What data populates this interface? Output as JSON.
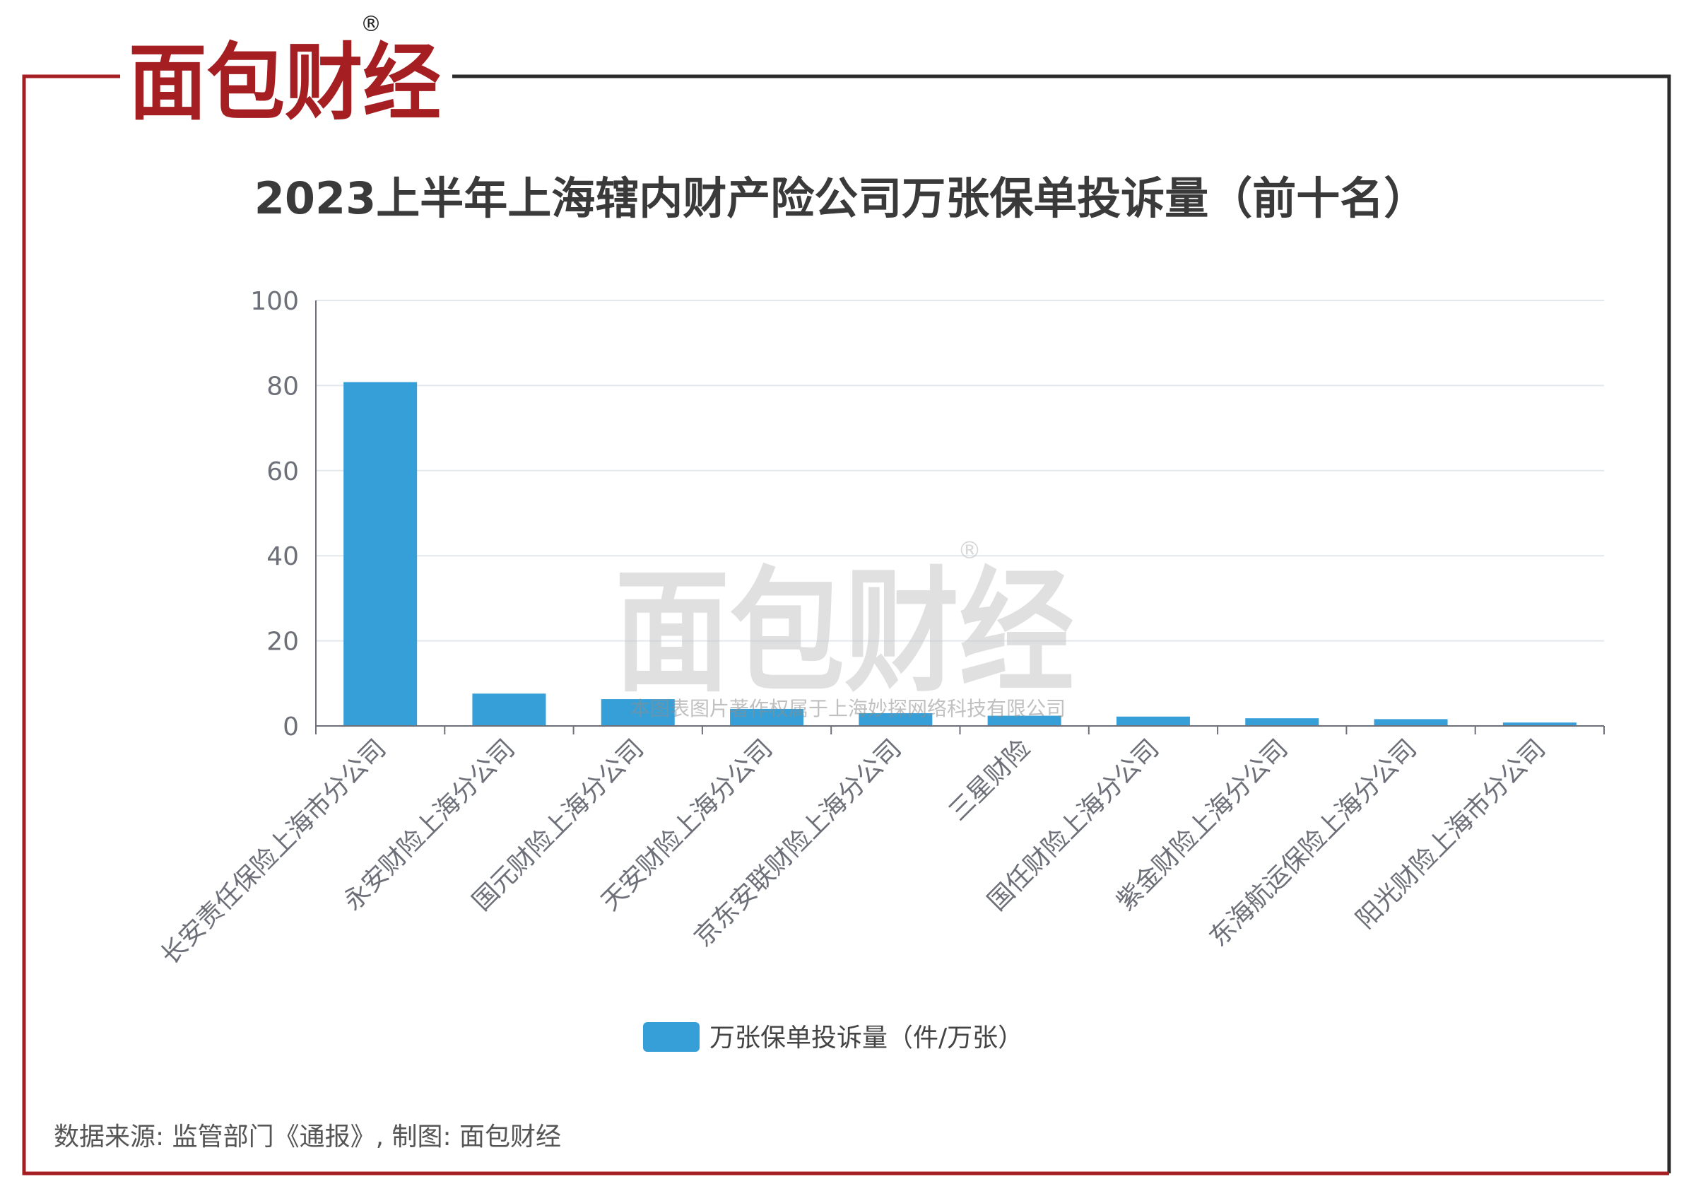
{
  "brand": {
    "logo_text": "面包财经",
    "registered_mark": "®",
    "colors": {
      "red": "#a51e22",
      "dark": "#222222",
      "frame_dark": "#2b2b2b"
    }
  },
  "watermark": {
    "logo_text": "面包财经",
    "registered_mark": "®",
    "copyright": "本图表图片著作权属于上海妙探网络科技有限公司"
  },
  "source_note": "数据来源: 监管部门《通报》, 制图: 面包财经",
  "chart_data": {
    "type": "bar",
    "title": "2023上半年上海辖内财产险公司万张保单投诉量（前十名）",
    "categories": [
      "长安责任保险上海市分公司",
      "永安财险上海分公司",
      "国元财险上海分公司",
      "天安财险上海分公司",
      "京东安联财险上海分公司",
      "三星财险",
      "国任财险上海分公司",
      "紫金财险上海分公司",
      "东海航运保险上海分公司",
      "阳光财险上海市分公司"
    ],
    "series": [
      {
        "name": "万张保单投诉量（件/万张）",
        "values": [
          80.8,
          7.6,
          6.3,
          4.0,
          3.0,
          2.4,
          2.2,
          1.8,
          1.6,
          0.8
        ],
        "color": "#379fd8"
      }
    ],
    "yticks": [
      "0",
      "20",
      "40",
      "60",
      "80",
      "100"
    ],
    "ylim": [
      0,
      100
    ],
    "xlabel": "",
    "ylabel": "",
    "grid": true,
    "legend_position": "bottom"
  }
}
